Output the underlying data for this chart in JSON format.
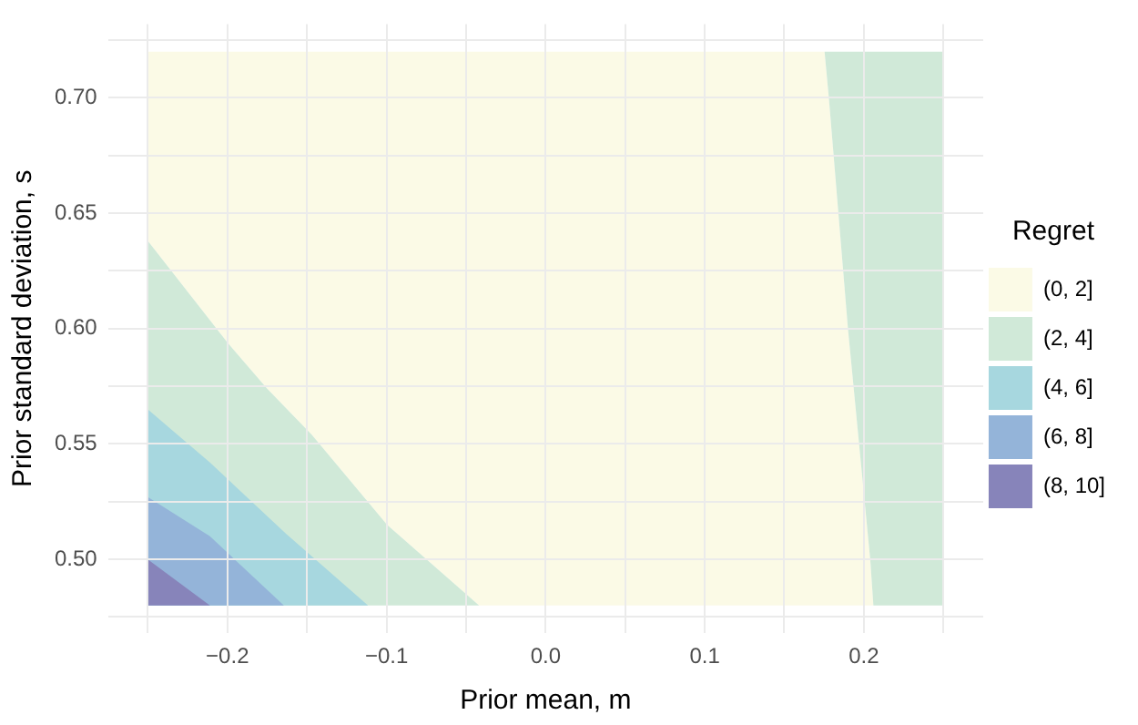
{
  "chart_data": {
    "type": "area",
    "xlabel": "Prior mean, m",
    "ylabel": "Prior standard deviation, s",
    "legend_title": "Regret",
    "legend": "right",
    "grid": true,
    "xlim": [
      -0.275,
      0.275
    ],
    "ylim": [
      0.468,
      0.732
    ],
    "xticks": [
      {
        "value": -0.25,
        "label": null
      },
      {
        "value": -0.2,
        "label": "−0.2"
      },
      {
        "value": -0.15,
        "label": null
      },
      {
        "value": -0.1,
        "label": "−0.1"
      },
      {
        "value": -0.05,
        "label": null
      },
      {
        "value": 0,
        "label": "0.0"
      },
      {
        "value": 0.05,
        "label": null
      },
      {
        "value": 0.1,
        "label": "0.1"
      },
      {
        "value": 0.15,
        "label": null
      },
      {
        "value": 0.2,
        "label": "0.2"
      },
      {
        "value": 0.25,
        "label": null
      }
    ],
    "yticks": [
      {
        "value": 0.475,
        "label": null
      },
      {
        "value": 0.5,
        "label": "0.50"
      },
      {
        "value": 0.525,
        "label": null
      },
      {
        "value": 0.55,
        "label": "0.55"
      },
      {
        "value": 0.575,
        "label": null
      },
      {
        "value": 0.6,
        "label": "0.60"
      },
      {
        "value": 0.625,
        "label": null
      },
      {
        "value": 0.65,
        "label": "0.65"
      },
      {
        "value": 0.675,
        "label": null
      },
      {
        "value": 0.7,
        "label": "0.70"
      },
      {
        "value": 0.725,
        "label": null
      }
    ],
    "series": [
      {
        "name": "(0, 2]",
        "color": "#fbfae6",
        "x": [
          -0.0418,
          -0.0996,
          -0.147,
          -0.175,
          -0.2,
          -0.25,
          -0.25,
          0.1753,
          0.178,
          0.19,
          0.204,
          0.206
        ],
        "values": [
          0.48,
          0.515,
          0.554,
          0.574,
          0.594,
          0.638,
          0.72,
          0.72,
          0.7,
          0.6,
          0.5,
          0.48
        ]
      },
      {
        "name": "(2, 4]",
        "color": "#d0e9d8",
        "x": [
          -0.25,
          -0.25,
          -0.2,
          -0.175,
          -0.147,
          -0.0996,
          -0.0418,
          0.0,
          0.1753,
          0.25,
          0.25,
          0.206,
          0.204,
          0.19,
          0.178
        ],
        "values": [
          0.48,
          0.638,
          0.594,
          0.574,
          0.554,
          0.515,
          0.48,
          null,
          0.72,
          0.72,
          0.48,
          0.48,
          0.5,
          0.6,
          0.7
        ]
      },
      {
        "name": "(4, 6]",
        "color": "#a7d7df",
        "x": [
          -0.25,
          -0.25,
          -0.211,
          -0.163,
          -0.1116
        ],
        "values": [
          0.48,
          0.565,
          0.542,
          0.511,
          0.48
        ]
      },
      {
        "name": "(6, 8]",
        "color": "#94b4d9",
        "x": [
          -0.25,
          -0.25,
          -0.211,
          -0.1645
        ],
        "values": [
          0.48,
          0.527,
          0.51,
          0.48
        ]
      },
      {
        "name": "(8, 10]",
        "color": "#8784ba",
        "x": [
          -0.25,
          -0.25,
          -0.211
        ],
        "values": [
          0.48,
          0.5,
          0.48
        ]
      }
    ]
  }
}
